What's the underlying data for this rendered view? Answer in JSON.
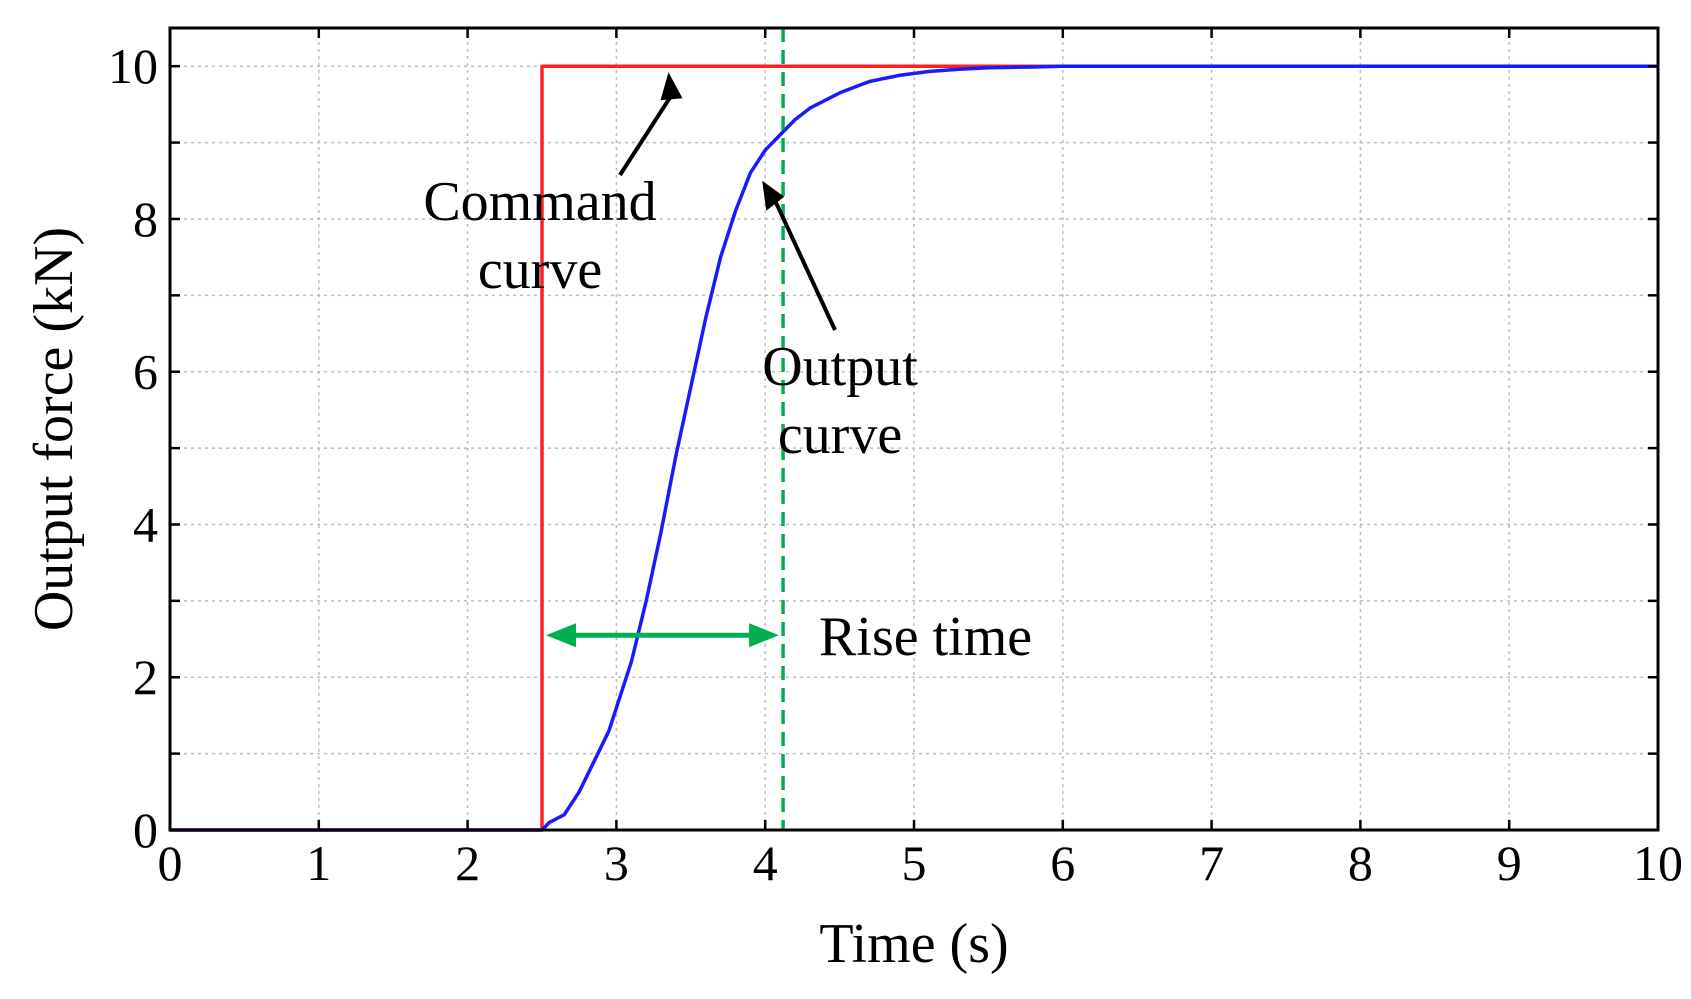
{
  "chart_data": {
    "type": "line",
    "xlabel": "Time (s)",
    "ylabel": "Output force (kN)",
    "xlim": [
      0,
      10
    ],
    "ylim": [
      0,
      10.5
    ],
    "xticks": [
      "0",
      "1",
      "2",
      "3",
      "4",
      "5",
      "6",
      "7",
      "8",
      "9",
      "10"
    ],
    "yticks": [
      "0",
      "2",
      "4",
      "6",
      "8",
      "10"
    ],
    "grid": true,
    "colors": {
      "command": "#ff2020",
      "output": "#1a1aff",
      "rise_time": "#00b050",
      "grid": "#bdbdbd"
    },
    "series": [
      {
        "name": "Command curve",
        "x": [
          0,
          2.5,
          2.5,
          10
        ],
        "y": [
          0,
          0,
          10,
          10
        ]
      },
      {
        "name": "Output curve",
        "x": [
          0,
          2.5,
          2.55,
          2.65,
          2.75,
          2.85,
          2.95,
          3.0,
          3.1,
          3.2,
          3.3,
          3.4,
          3.5,
          3.6,
          3.7,
          3.8,
          3.9,
          4.0,
          4.1,
          4.2,
          4.3,
          4.5,
          4.7,
          4.9,
          5.1,
          5.3,
          5.5,
          5.8,
          6.0,
          6.5,
          7.0,
          8.0,
          9.0,
          10.0
        ],
        "y": [
          0,
          0,
          0.1,
          0.2,
          0.5,
          0.9,
          1.3,
          1.6,
          2.2,
          3.0,
          3.9,
          4.9,
          5.8,
          6.7,
          7.5,
          8.1,
          8.6,
          8.9,
          9.1,
          9.3,
          9.45,
          9.65,
          9.8,
          9.88,
          9.93,
          9.96,
          9.98,
          9.99,
          10.0,
          10.0,
          10.0,
          10.0,
          10.0,
          10.0
        ]
      }
    ],
    "annotations": [
      {
        "text_lines": [
          "Command",
          "curve"
        ]
      },
      {
        "text_lines": [
          "Output",
          "curve"
        ]
      },
      {
        "text": "Rise time"
      }
    ],
    "rise_time": {
      "start": 2.5,
      "end": 4.12
    }
  }
}
